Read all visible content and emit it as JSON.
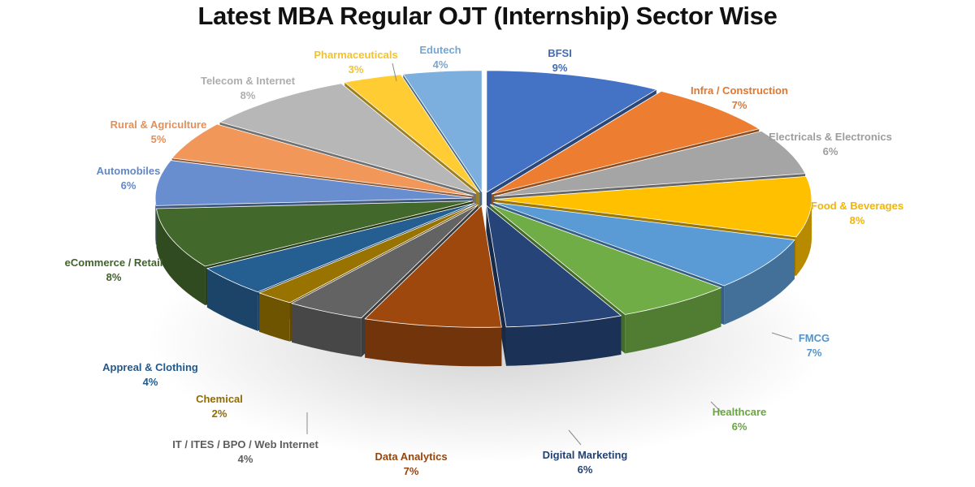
{
  "chart_data": {
    "type": "pie",
    "title": "Latest MBA Regular OJT (Internship) Sector Wise",
    "three_d": true,
    "exploded": true,
    "slices": [
      {
        "label": "BFSI",
        "value": 9,
        "display": "9%",
        "color": "#4472c4"
      },
      {
        "label": "Infra / Construction",
        "value": 7,
        "display": "7%",
        "color": "#ed7d31"
      },
      {
        "label": "Electricals & Electronics",
        "value": 6,
        "display": "6%",
        "color": "#a5a5a5"
      },
      {
        "label": "Food & Beverages",
        "value": 8,
        "display": "8%",
        "color": "#ffc000"
      },
      {
        "label": "FMCG",
        "value": 7,
        "display": "7%",
        "color": "#5b9bd5"
      },
      {
        "label": "Healthcare",
        "value": 6,
        "display": "6%",
        "color": "#70ad47"
      },
      {
        "label": "Digital Marketing",
        "value": 6,
        "display": "6%",
        "color": "#264478"
      },
      {
        "label": "Data Analytics",
        "value": 7,
        "display": "7%",
        "color": "#9e480e"
      },
      {
        "label": "IT / ITES / BPO / Web Internet",
        "value": 4,
        "display": "4%",
        "color": "#636363"
      },
      {
        "label": "Chemical",
        "value": 2,
        "display": "2%",
        "color": "#997300"
      },
      {
        "label": "Appreal & Clothing",
        "value": 4,
        "display": "4%",
        "color": "#255e91"
      },
      {
        "label": "eCommerce / Retail",
        "value": 8,
        "display": "8%",
        "color": "#43682b"
      },
      {
        "label": "Automobiles",
        "value": 6,
        "display": "6%",
        "color": "#698ed0"
      },
      {
        "label": "Rural & Agriculture",
        "value": 5,
        "display": "5%",
        "color": "#f1975a"
      },
      {
        "label": "Telecom & Internet",
        "value": 8,
        "display": "8%",
        "color": "#b7b7b7"
      },
      {
        "label": "Pharmaceuticals",
        "value": 3,
        "display": "3%",
        "color": "#ffcd33"
      },
      {
        "label": "Edutech",
        "value": 4,
        "display": "4%",
        "color": "#7cafdd"
      }
    ]
  }
}
